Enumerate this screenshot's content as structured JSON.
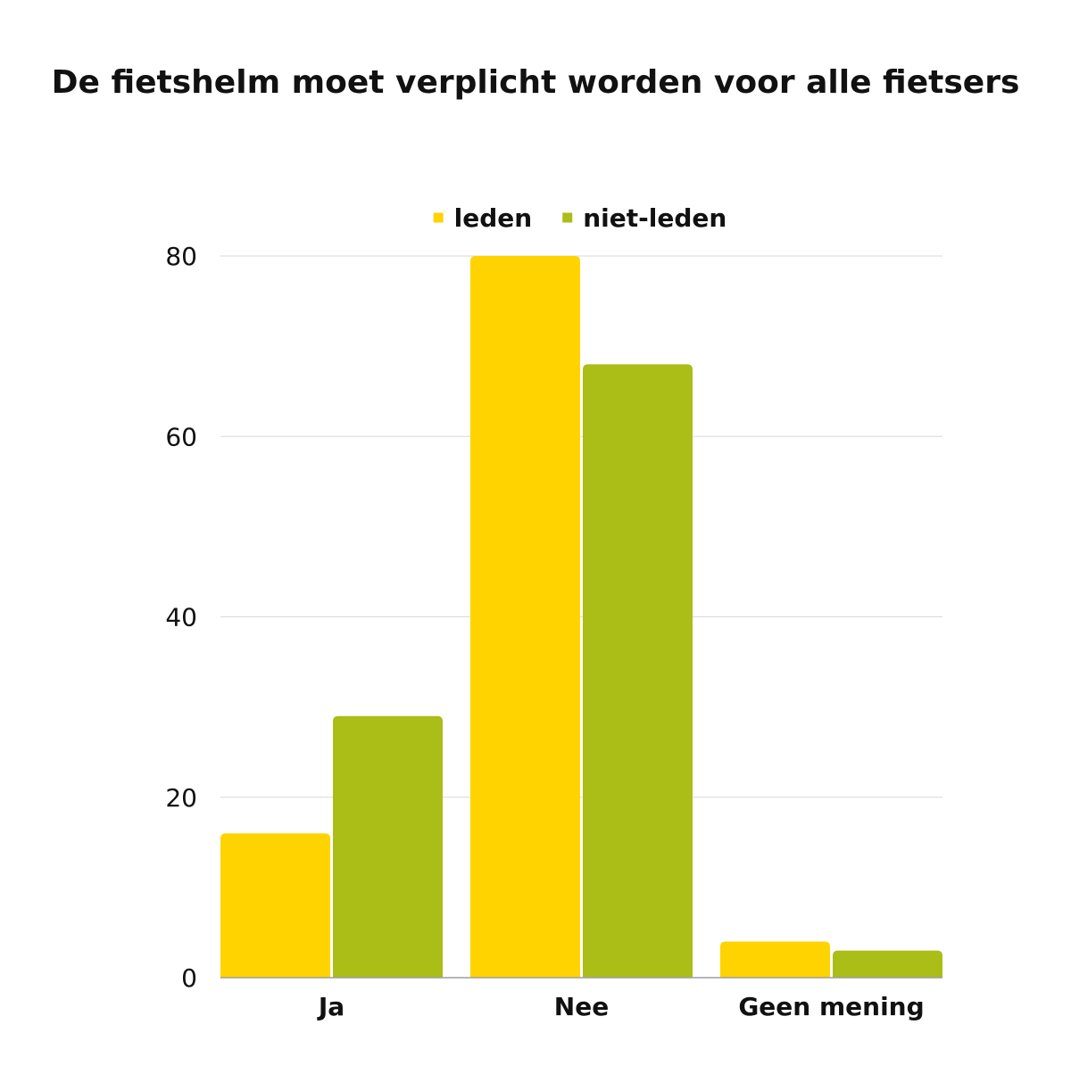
{
  "chart_data": {
    "type": "bar",
    "title": "De fietshelm moet verplicht worden voor alle fietsers",
    "xlabel": "",
    "ylabel": "",
    "categories": [
      "Ja",
      "Nee",
      "Geen mening"
    ],
    "series": [
      {
        "name": "leden",
        "color": "#FFD300",
        "values": [
          16,
          80,
          4
        ]
      },
      {
        "name": "niet-leden",
        "color": "#ABBD17",
        "values": [
          29,
          68,
          3
        ]
      }
    ],
    "ylim": [
      0,
      80
    ],
    "yticks": [
      "0",
      "20",
      "40",
      "60",
      "80"
    ],
    "grid": true,
    "legend_position": "top-center"
  }
}
